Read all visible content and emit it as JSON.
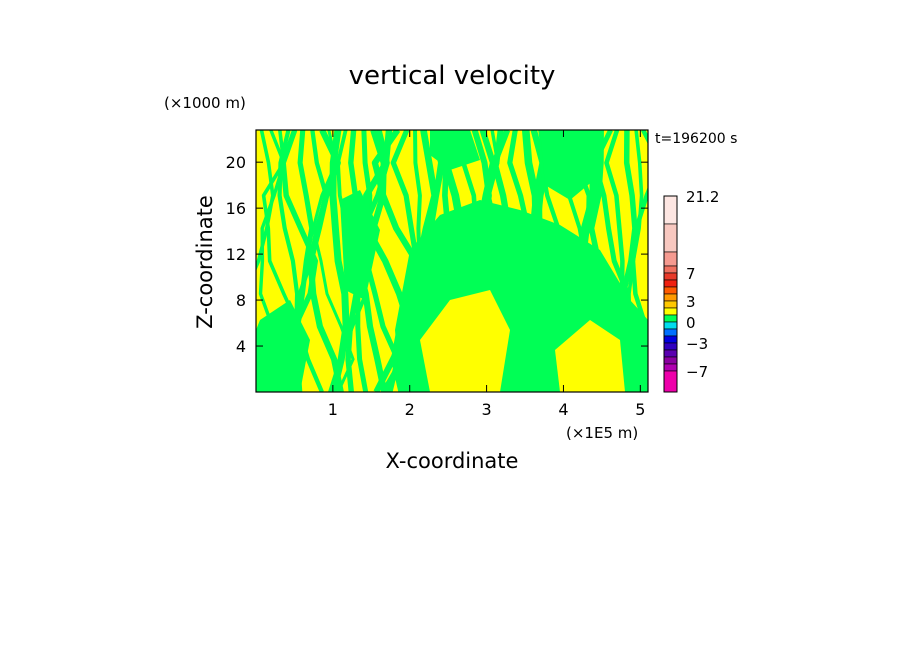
{
  "chart_data": {
    "type": "heatmap",
    "title": "vertical velocity",
    "xlabel": "X-coordinate",
    "ylabel": "Z-coordinate",
    "x_unit_label": "(×1E5 m)",
    "y_unit_label": "(×1000 m)",
    "time_label": "t=196200 s",
    "xlim": [
      0,
      5.1
    ],
    "ylim": [
      0,
      22.8
    ],
    "x_ticks": [
      1,
      2,
      3,
      4,
      5
    ],
    "x_tick_labels": [
      "1",
      "2",
      "3",
      "4",
      "5"
    ],
    "y_ticks": [
      4,
      8,
      12,
      16,
      20
    ],
    "y_tick_labels": [
      "4",
      "8",
      "12",
      "16",
      "20"
    ],
    "field_colors": {
      "positive": "#ffff00",
      "negative": "#00ff55"
    },
    "colorbar": {
      "labels": [
        "21.2",
        "7",
        "3",
        "0",
        "-3",
        "-7"
      ],
      "segments": [
        {
          "from": 14,
          "to": 21.2,
          "color": "#fde6e2"
        },
        {
          "from": 10,
          "to": 14,
          "color": "#f8c8c0"
        },
        {
          "from": 8,
          "to": 10,
          "color": "#f59a90"
        },
        {
          "from": 7,
          "to": 8,
          "color": "#f07060"
        },
        {
          "from": 6,
          "to": 7,
          "color": "#e83a2a"
        },
        {
          "from": 5,
          "to": 6,
          "color": "#f02010"
        },
        {
          "from": 4,
          "to": 5,
          "color": "#ff5a00"
        },
        {
          "from": 3,
          "to": 4,
          "color": "#ff9a00"
        },
        {
          "from": 2,
          "to": 3,
          "color": "#ffc800"
        },
        {
          "from": 1,
          "to": 2,
          "color": "#ffff00"
        },
        {
          "from": 0,
          "to": 1,
          "color": "#00ff55"
        },
        {
          "from": -1,
          "to": 0,
          "color": "#00ddee"
        },
        {
          "from": -2,
          "to": -1,
          "color": "#0070ff"
        },
        {
          "from": -3,
          "to": -2,
          "color": "#0000e0"
        },
        {
          "from": -4,
          "to": -3,
          "color": "#3000c0"
        },
        {
          "from": -5,
          "to": -4,
          "color": "#5a00b0"
        },
        {
          "from": -6,
          "to": -5,
          "color": "#8a00a0"
        },
        {
          "from": -7,
          "to": -6,
          "color": "#b000b0"
        },
        {
          "from": -10,
          "to": -7,
          "color": "#ee00aa"
        }
      ]
    }
  }
}
